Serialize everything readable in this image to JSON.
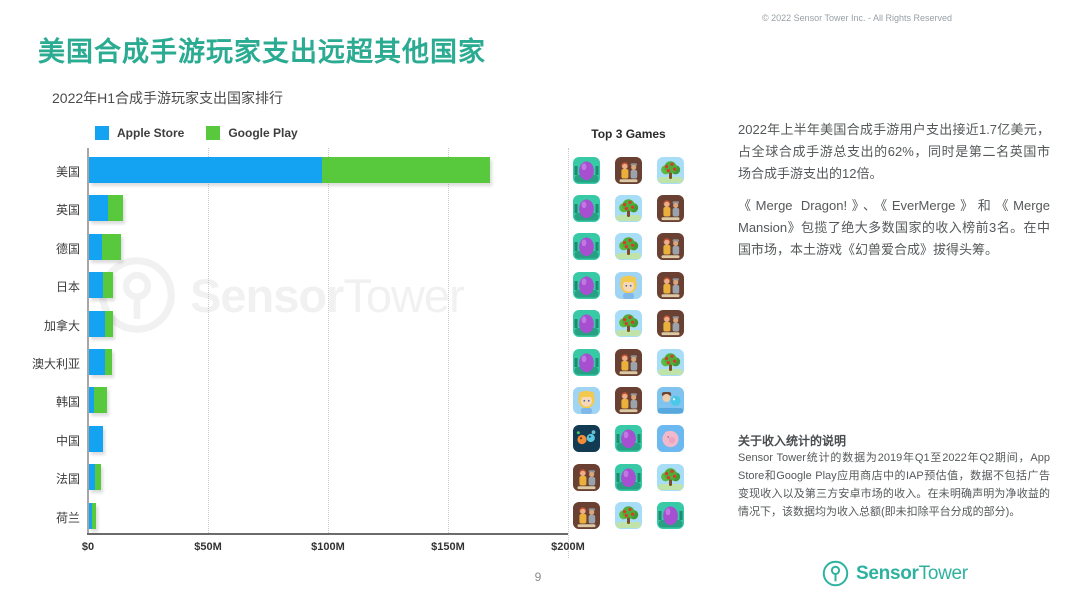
{
  "header": {
    "title": "美国合成手游玩家支出远超其他国家",
    "copyright": "© 2022 Sensor Tower Inc. - All Rights Reserved"
  },
  "chart": {
    "subtitle": "2022年H1合成手游玩家支出国家排行",
    "legend": [
      {
        "label": "Apple Store",
        "color": "#14a2f2"
      },
      {
        "label": "Google Play",
        "color": "#58c93c"
      }
    ],
    "top3_header": "Top 3 Games",
    "x_ticks": [
      "$0",
      "$50M",
      "$100M",
      "$150M",
      "$200M"
    ]
  },
  "chart_data": {
    "type": "bar",
    "orientation": "horizontal",
    "stacked": true,
    "title": "2022年H1合成手游玩家支出国家排行",
    "categories": [
      "美国",
      "英国",
      "德国",
      "日本",
      "加拿大",
      "澳大利亚",
      "韩国",
      "中国",
      "法国",
      "荷兰"
    ],
    "series": [
      {
        "name": "Apple Store",
        "color": "#14a2f2",
        "values": [
          97,
          7.8,
          5.5,
          6.0,
          6.5,
          6.5,
          2.0,
          5.7,
          2.5,
          1.3
        ]
      },
      {
        "name": "Google Play",
        "color": "#58c93c",
        "values": [
          70,
          6.2,
          8.0,
          4.0,
          3.5,
          3.0,
          5.5,
          0,
          2.4,
          1.6
        ]
      }
    ],
    "x_unit": "USD (millions)",
    "xlim": [
      0,
      200
    ],
    "x_tick_labels": [
      "$0",
      "$50M",
      "$100M",
      "$150M",
      "$200M"
    ],
    "legend_position": "top-left",
    "grid": "dotted-vertical",
    "top3_games": {
      "icon_names": {
        "egg": "Merge Dragons!",
        "tree": "EverMerge",
        "mansion": "Merge Mansion",
        "girl": "blonde-girl-game",
        "girl-pet": "girl-with-pet-game",
        "beasts": "幻兽爱合成",
        "pig": "pink-pig-game"
      },
      "rows": [
        [
          "egg",
          "mansion",
          "tree"
        ],
        [
          "egg",
          "tree",
          "mansion"
        ],
        [
          "egg",
          "tree",
          "mansion"
        ],
        [
          "egg",
          "girl",
          "mansion"
        ],
        [
          "egg",
          "tree",
          "mansion"
        ],
        [
          "egg",
          "mansion",
          "tree"
        ],
        [
          "girl",
          "mansion",
          "girl-pet"
        ],
        [
          "beasts",
          "egg",
          "pig"
        ],
        [
          "mansion",
          "egg",
          "tree"
        ],
        [
          "mansion",
          "tree",
          "egg"
        ]
      ]
    }
  },
  "right_panel": {
    "paragraph1": "2022年上半年美国合成手游用户支出接近1.7亿美元，占全球合成手游总支出的62%，同时是第二名英国市场合成手游支出的12倍。",
    "paragraph2": "《Merge Dragon!》、《EverMerge》和《Merge Mansion》包揽了绝大多数国家的收入榜前3名。在中国市场，本土游戏《幻兽爱合成》拔得头筹。",
    "note_title": "关于收入统计的说明",
    "note_body": "Sensor Tower统计的数据为2019年Q1至2022年Q2期间，App Store和Google Play应用商店中的IAP预估值，数据不包括广告变现收入以及第三方安卓市场的收入。在未明确声明为净收益的情况下，该数据均为收入总额(即未扣除平台分成的部分)。"
  },
  "watermark": {
    "bold": "Sensor",
    "light": "Tower"
  },
  "footer": {
    "page_number": "9",
    "logo_bold": "Sensor",
    "logo_light": "Tower"
  },
  "colors": {
    "accent_teal": "#2aab92",
    "apple_blue": "#14a2f2",
    "google_green": "#58c93c",
    "logo_teal": "#2eb2a0"
  }
}
